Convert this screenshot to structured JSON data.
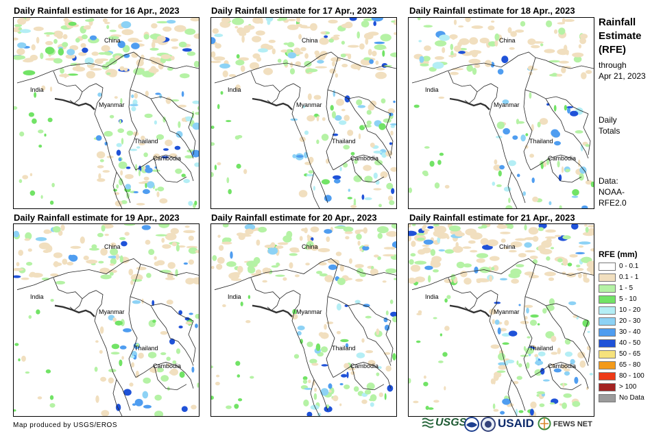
{
  "panels": [
    {
      "title": "Daily Rainfall estimate for 16 Apr., 2023",
      "wetness": 1.0,
      "seed": 11
    },
    {
      "title": "Daily Rainfall estimate for 17 Apr., 2023",
      "wetness": 0.85,
      "seed": 23
    },
    {
      "title": "Daily Rainfall estimate for 18 Apr., 2023",
      "wetness": 0.6,
      "seed": 37
    },
    {
      "title": "Daily Rainfall estimate for 19 Apr., 2023",
      "wetness": 0.65,
      "seed": 41
    },
    {
      "title": "Daily Rainfall estimate for 20 Apr., 2023",
      "wetness": 0.8,
      "seed": 53
    },
    {
      "title": "Daily Rainfall estimate for 21 Apr., 2023",
      "wetness": 1.0,
      "seed": 67
    }
  ],
  "country_labels": {
    "china": "China",
    "india": "India",
    "myanmar": "Myanmar",
    "thailand": "Thailand",
    "cambodia": "Cambodia"
  },
  "sidebar": {
    "title_line1": "Rainfall",
    "title_line2": "Estimate",
    "title_line3": "(RFE)",
    "through_line1": "through",
    "through_line2": "Apr 21, 2023",
    "daily_line1": "Daily",
    "daily_line2": "Totals",
    "data_line1": "Data:",
    "data_line2": "NOAA-",
    "data_line3": "RFE2.0"
  },
  "legend": {
    "title": "RFE (mm)",
    "items": [
      {
        "label": "0 - 0.1",
        "color": "#ffffff"
      },
      {
        "label": "0.1 - 1",
        "color": "#f1dfbf"
      },
      {
        "label": "1 - 5",
        "color": "#b5f2a5"
      },
      {
        "label": "5 - 10",
        "color": "#72e366"
      },
      {
        "label": "10 - 20",
        "color": "#b4eef5"
      },
      {
        "label": "20 - 30",
        "color": "#8dd2f5"
      },
      {
        "label": "30 - 40",
        "color": "#4f9df0"
      },
      {
        "label": "40 - 50",
        "color": "#1f52d8"
      },
      {
        "label": "50 - 65",
        "color": "#f6e27c"
      },
      {
        "label": "65 - 80",
        "color": "#f39a1a"
      },
      {
        "label": "80 - 100",
        "color": "#ee3a17"
      },
      {
        "label": "> 100",
        "color": "#a42322"
      },
      {
        "label": "No Data",
        "color": "#9b9b9b"
      }
    ]
  },
  "footer": {
    "credit": "Map produced by USGS/EROS",
    "usgs": "USGS",
    "usaid": "USAID",
    "famine": "FEWS NET"
  }
}
